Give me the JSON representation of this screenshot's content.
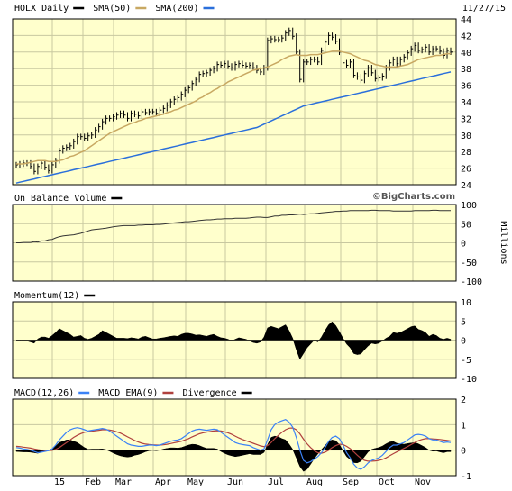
{
  "date_label": "11/27/15",
  "watermark": "©BigCharts.com",
  "colors": {
    "panel_bg": "#ffffcc",
    "grid": "#c8c8a0",
    "price": "#000000",
    "sma50": "#c8a862",
    "sma200": "#2a6fdb",
    "macd": "#3b82f6",
    "ema": "#b0413e",
    "fill": "#000000"
  },
  "x_axis": {
    "labels": [
      "15",
      "Feb",
      "Mar",
      "Apr",
      "May",
      "Jun",
      "Jul",
      "Aug",
      "Sep",
      "Oct",
      "Nov"
    ]
  },
  "chart_data": [
    {
      "type": "line",
      "name": "price",
      "legend": [
        {
          "name": "HOLX Daily",
          "color": "#000000"
        },
        {
          "name": "SMA(50)",
          "color": "#c8a862"
        },
        {
          "name": "SMA(200)",
          "color": "#2a6fdb"
        }
      ],
      "ylim": [
        24,
        44
      ],
      "yticks": [
        24,
        26,
        28,
        30,
        32,
        34,
        36,
        38,
        40,
        42,
        44
      ],
      "x": [
        0,
        4,
        8,
        12,
        16,
        20,
        24,
        28,
        32,
        36,
        40,
        44,
        48,
        52,
        56,
        60,
        64,
        68,
        72,
        76,
        80,
        84,
        88,
        92,
        96,
        100,
        104,
        108,
        112,
        116,
        120,
        124,
        128,
        132,
        136,
        140,
        144,
        148,
        152,
        156,
        160,
        164,
        168,
        172,
        176,
        180,
        184,
        188,
        192,
        196,
        200,
        204,
        208,
        212,
        216,
        220,
        224,
        228,
        232,
        236,
        240,
        244,
        248,
        252,
        256,
        260,
        264,
        268,
        272,
        276,
        280,
        284,
        288,
        292,
        296,
        300,
        304,
        308,
        312,
        316,
        320,
        324,
        328,
        332,
        336,
        340,
        344,
        348,
        352,
        356,
        360,
        364,
        368,
        372,
        376,
        380,
        384,
        388,
        392,
        396,
        400,
        404,
        408,
        412,
        416,
        420,
        424,
        428,
        432,
        436,
        440,
        444,
        448,
        452,
        456,
        460,
        464,
        468,
        472,
        476,
        480,
        484
      ],
      "price": [
        26.4,
        26.5,
        26.6,
        26.6,
        26.2,
        25.6,
        26.2,
        26.6,
        26.1,
        25.7,
        26.4,
        26.9,
        28.1,
        28.4,
        28.5,
        28.7,
        29.2,
        29.8,
        29.8,
        29.6,
        29.9,
        30.0,
        30.6,
        31.0,
        31.6,
        32.0,
        32.0,
        32.2,
        32.4,
        32.6,
        32.4,
        32.0,
        32.6,
        32.5,
        32.3,
        32.8,
        32.7,
        32.8,
        32.8,
        32.6,
        33.0,
        33.2,
        33.6,
        34.0,
        34.3,
        34.5,
        34.9,
        35.4,
        35.7,
        36.2,
        36.7,
        37.3,
        37.4,
        37.5,
        37.8,
        38.0,
        38.5,
        38.4,
        38.6,
        38.3,
        38.1,
        38.5,
        38.6,
        38.4,
        38.3,
        38.4,
        38.1,
        37.8,
        37.6,
        38.1,
        41.4,
        41.6,
        41.5,
        41.5,
        41.7,
        42.3,
        42.6,
        41.9,
        40.0,
        36.7,
        38.8,
        38.8,
        39.1,
        39.1,
        38.8,
        40.2,
        41.2,
        42.0,
        41.8,
        41.3,
        40.0,
        38.7,
        38.4,
        38.8,
        37.2,
        37.0,
        36.6,
        37.4,
        38.1,
        37.5,
        36.8,
        36.9,
        37.1,
        38.1,
        38.7,
        39.1,
        38.6,
        39.1,
        39.4,
        39.9,
        40.4,
        40.8,
        40.2,
        40.3,
        40.6,
        40.0,
        40.4,
        40.4,
        40.1,
        39.6,
        40.2,
        40.0
      ],
      "sma50": [
        26.5,
        26.5,
        26.5,
        26.6,
        26.7,
        26.8,
        26.9,
        26.9,
        26.9,
        26.8,
        26.8,
        26.8,
        26.9,
        27.0,
        27.2,
        27.4,
        27.5,
        27.7,
        27.9,
        28.1,
        28.4,
        28.7,
        29.0,
        29.3,
        29.6,
        29.9,
        30.2,
        30.4,
        30.6,
        30.8,
        31.0,
        31.2,
        31.4,
        31.5,
        31.7,
        31.8,
        32.0,
        32.1,
        32.2,
        32.3,
        32.4,
        32.5,
        32.7,
        32.8,
        33.0,
        33.1,
        33.3,
        33.5,
        33.7,
        33.9,
        34.1,
        34.4,
        34.6,
        34.9,
        35.1,
        35.4,
        35.6,
        35.9,
        36.1,
        36.4,
        36.6,
        36.8,
        37.0,
        37.2,
        37.4,
        37.6,
        37.8,
        37.9,
        38.0,
        38.1,
        38.2,
        38.4,
        38.6,
        38.8,
        39.1,
        39.3,
        39.5,
        39.6,
        39.7,
        39.6,
        39.6,
        39.6,
        39.7,
        39.7,
        39.7,
        39.8,
        39.9,
        40.0,
        40.1,
        40.1,
        40.1,
        40.0,
        39.9,
        39.8,
        39.6,
        39.4,
        39.2,
        39.0,
        38.9,
        38.7,
        38.5,
        38.4,
        38.3,
        38.2,
        38.2,
        38.2,
        38.2,
        38.3,
        38.4,
        38.5,
        38.7,
        38.9,
        39.1,
        39.2,
        39.3,
        39.4,
        39.5,
        39.6,
        39.6,
        39.7,
        39.8,
        39.8
      ],
      "sma200": [
        24.2,
        24.3,
        24.4,
        24.5,
        24.6,
        24.7,
        24.8,
        24.9,
        25.0,
        25.1,
        25.2,
        25.3,
        25.4,
        25.5,
        25.6,
        25.7,
        25.8,
        25.9,
        26.0,
        26.1,
        26.2,
        26.3,
        26.4,
        26.5,
        26.6,
        26.7,
        26.8,
        26.9,
        27.0,
        27.1,
        27.2,
        27.3,
        27.4,
        27.5,
        27.6,
        27.7,
        27.8,
        27.9,
        28.0,
        28.1,
        28.2,
        28.3,
        28.4,
        28.5,
        28.6,
        28.7,
        28.8,
        28.9,
        29.0,
        29.1,
        29.2,
        29.3,
        29.4,
        29.5,
        29.6,
        29.7,
        29.8,
        29.9,
        30.0,
        30.1,
        30.2,
        30.3,
        30.4,
        30.5,
        30.6,
        30.7,
        30.8,
        30.9,
        31.1,
        31.3,
        31.5,
        31.7,
        31.9,
        32.1,
        32.3,
        32.5,
        32.7,
        32.9,
        33.1,
        33.3,
        33.5,
        33.6,
        33.7,
        33.8,
        33.9,
        34.0,
        34.1,
        34.2,
        34.3,
        34.4,
        34.5,
        34.6,
        34.7,
        34.8,
        34.9,
        35.0,
        35.1,
        35.2,
        35.3,
        35.4,
        35.5,
        35.6,
        35.7,
        35.8,
        35.9,
        36.0,
        36.1,
        36.2,
        36.3,
        36.4,
        36.5,
        36.6,
        36.7,
        36.8,
        36.9,
        37.0,
        37.1,
        37.2,
        37.3,
        37.4,
        37.5,
        37.6
      ]
    },
    {
      "type": "line",
      "name": "obv",
      "legend": [
        {
          "name": "On Balance Volume",
          "color": "#000000"
        }
      ],
      "ylabel": "Millions",
      "ylim": [
        -100,
        100
      ],
      "yticks": [
        -100,
        -50,
        0,
        50,
        100
      ],
      "values": [
        0,
        0,
        1,
        1,
        1,
        3,
        2,
        5,
        5,
        8,
        9,
        13,
        16,
        18,
        19,
        20,
        21,
        23,
        25,
        28,
        31,
        34,
        35,
        36,
        37,
        38,
        40,
        42,
        43,
        44,
        45,
        45,
        45,
        45,
        46,
        46,
        47,
        47,
        47,
        48,
        48,
        49,
        50,
        51,
        52,
        53,
        54,
        55,
        55,
        56,
        57,
        58,
        59,
        60,
        60,
        61,
        62,
        62,
        63,
        63,
        63,
        64,
        64,
        64,
        64,
        65,
        66,
        67,
        67,
        66,
        66,
        68,
        70,
        70,
        72,
        72,
        73,
        73,
        74,
        75,
        74,
        75,
        76,
        76,
        77,
        78,
        79,
        80,
        81,
        82,
        82,
        83,
        83,
        84,
        84,
        84,
        84,
        84,
        84,
        85,
        85,
        84,
        84,
        84,
        84,
        83,
        83,
        83,
        83,
        83,
        83,
        84,
        84,
        84,
        84,
        84,
        85,
        85,
        84,
        84,
        84,
        84
      ]
    },
    {
      "type": "area",
      "name": "momentum",
      "legend": [
        {
          "name": "Momentum(12)",
          "color": "#000000"
        }
      ],
      "ylim": [
        -10,
        10
      ],
      "yticks": [
        -10,
        -5,
        0,
        5,
        10
      ],
      "values": [
        0,
        0,
        -0.2,
        -0.2,
        -0.5,
        -0.8,
        0.3,
        0.8,
        0.8,
        0.5,
        1.2,
        2.0,
        3.0,
        2.5,
        2.0,
        1.5,
        0.8,
        1.0,
        1.2,
        0.5,
        0.2,
        0.5,
        1.0,
        1.5,
        2.5,
        2.0,
        1.5,
        1.0,
        0.5,
        0.5,
        0.5,
        0.4,
        0.6,
        0.5,
        0.3,
        0.8,
        1.0,
        0.6,
        0.3,
        0.3,
        0.5,
        0.6,
        0.8,
        1.0,
        1.1,
        1.0,
        1.5,
        1.8,
        1.8,
        1.6,
        1.3,
        1.4,
        1.2,
        1.0,
        1.3,
        1.5,
        1.0,
        0.6,
        0.5,
        0.2,
        -0.2,
        0.2,
        0.6,
        0.4,
        0.2,
        -0.2,
        -0.6,
        -0.8,
        -0.5,
        0.8,
        3.2,
        3.6,
        3.3,
        3.0,
        3.5,
        4.0,
        2.5,
        0.5,
        -2.5,
        -5.0,
        -3.5,
        -2.0,
        -1.0,
        0,
        -0.5,
        0.8,
        2.5,
        4.0,
        4.8,
        3.8,
        2.2,
        0.5,
        -1.0,
        -2.0,
        -3.5,
        -3.8,
        -3.6,
        -2.5,
        -1.5,
        -0.8,
        -1.0,
        -0.8,
        -0.2,
        0.5,
        1.0,
        2.0,
        1.8,
        2.0,
        2.5,
        3.0,
        3.5,
        3.7,
        2.8,
        2.5,
        2.0,
        1.0,
        1.5,
        1.2,
        0.5,
        0.2,
        0.5,
        0.2
      ]
    },
    {
      "type": "line",
      "name": "macd",
      "legend": [
        {
          "name": "MACD(12,26)",
          "color": "#3b82f6"
        },
        {
          "name": "MACD EMA(9)",
          "color": "#b0413e"
        },
        {
          "name": "Divergence",
          "color": "#000000"
        }
      ],
      "ylim": [
        -1,
        2
      ],
      "yticks": [
        -1,
        0,
        1,
        2
      ],
      "macd": [
        0.1,
        0.08,
        0.05,
        0.03,
        0.0,
        -0.05,
        -0.1,
        -0.08,
        -0.05,
        -0.02,
        0.05,
        0.2,
        0.4,
        0.55,
        0.7,
        0.8,
        0.85,
        0.88,
        0.85,
        0.8,
        0.75,
        0.78,
        0.8,
        0.82,
        0.85,
        0.82,
        0.75,
        0.65,
        0.55,
        0.45,
        0.35,
        0.25,
        0.2,
        0.18,
        0.15,
        0.15,
        0.18,
        0.2,
        0.2,
        0.18,
        0.2,
        0.25,
        0.3,
        0.35,
        0.38,
        0.4,
        0.45,
        0.55,
        0.65,
        0.75,
        0.8,
        0.82,
        0.8,
        0.78,
        0.8,
        0.82,
        0.8,
        0.7,
        0.6,
        0.5,
        0.4,
        0.3,
        0.25,
        0.22,
        0.2,
        0.18,
        0.1,
        0.05,
        0.0,
        0.05,
        0.4,
        0.8,
        1.0,
        1.1,
        1.15,
        1.2,
        1.1,
        0.9,
        0.5,
        0.0,
        -0.4,
        -0.5,
        -0.45,
        -0.35,
        -0.25,
        -0.1,
        0.1,
        0.35,
        0.5,
        0.55,
        0.45,
        0.2,
        -0.1,
        -0.3,
        -0.55,
        -0.7,
        -0.75,
        -0.65,
        -0.5,
        -0.4,
        -0.35,
        -0.3,
        -0.2,
        -0.05,
        0.1,
        0.2,
        0.2,
        0.25,
        0.3,
        0.4,
        0.5,
        0.6,
        0.62,
        0.6,
        0.55,
        0.45,
        0.4,
        0.4,
        0.35,
        0.3,
        0.32,
        0.3
      ],
      "signal": [
        0.15,
        0.14,
        0.12,
        0.1,
        0.08,
        0.05,
        0.02,
        0.0,
        -0.01,
        -0.02,
        -0.01,
        0.03,
        0.1,
        0.2,
        0.3,
        0.4,
        0.5,
        0.58,
        0.65,
        0.7,
        0.72,
        0.74,
        0.76,
        0.78,
        0.8,
        0.8,
        0.79,
        0.76,
        0.72,
        0.67,
        0.6,
        0.52,
        0.45,
        0.38,
        0.32,
        0.27,
        0.24,
        0.22,
        0.21,
        0.2,
        0.2,
        0.21,
        0.23,
        0.26,
        0.29,
        0.32,
        0.35,
        0.4,
        0.45,
        0.52,
        0.58,
        0.64,
        0.68,
        0.71,
        0.73,
        0.75,
        0.76,
        0.75,
        0.72,
        0.68,
        0.62,
        0.55,
        0.48,
        0.42,
        0.37,
        0.32,
        0.27,
        0.22,
        0.17,
        0.14,
        0.18,
        0.3,
        0.45,
        0.58,
        0.7,
        0.8,
        0.86,
        0.87,
        0.8,
        0.64,
        0.43,
        0.25,
        0.1,
        -0.02,
        -0.1,
        -0.12,
        -0.08,
        0.0,
        0.1,
        0.18,
        0.23,
        0.22,
        0.15,
        0.06,
        -0.06,
        -0.2,
        -0.32,
        -0.4,
        -0.43,
        -0.43,
        -0.42,
        -0.4,
        -0.36,
        -0.3,
        -0.22,
        -0.14,
        -0.07,
        0.0,
        0.07,
        0.14,
        0.22,
        0.3,
        0.37,
        0.42,
        0.45,
        0.45,
        0.44,
        0.43,
        0.42,
        0.4,
        0.38,
        0.36
      ],
      "divergence": [
        -0.05,
        -0.06,
        -0.07,
        -0.07,
        -0.08,
        -0.1,
        -0.12,
        -0.08,
        -0.04,
        0.0,
        0.06,
        0.17,
        0.3,
        0.35,
        0.4,
        0.4,
        0.35,
        0.3,
        0.2,
        0.1,
        0.03,
        0.04,
        0.04,
        0.04,
        0.05,
        0.02,
        -0.04,
        -0.11,
        -0.17,
        -0.22,
        -0.25,
        -0.27,
        -0.25,
        -0.2,
        -0.17,
        -0.12,
        -0.06,
        -0.02,
        -0.01,
        -0.02,
        0.0,
        0.04,
        0.07,
        0.09,
        0.09,
        0.08,
        0.1,
        0.15,
        0.2,
        0.23,
        0.22,
        0.18,
        0.12,
        0.07,
        0.07,
        0.07,
        0.04,
        -0.05,
        -0.12,
        -0.18,
        -0.22,
        -0.25,
        -0.23,
        -0.2,
        -0.17,
        -0.14,
        -0.17,
        -0.17,
        -0.17,
        -0.09,
        0.22,
        0.5,
        0.55,
        0.52,
        0.45,
        0.4,
        0.24,
        0.03,
        -0.3,
        -0.64,
        -0.83,
        -0.75,
        -0.55,
        -0.33,
        -0.15,
        0.02,
        0.18,
        0.35,
        0.4,
        0.37,
        0.22,
        -0.02,
        -0.25,
        -0.36,
        -0.49,
        -0.5,
        -0.43,
        -0.25,
        -0.07,
        0.03,
        0.07,
        0.1,
        0.16,
        0.25,
        0.32,
        0.34,
        0.27,
        0.25,
        0.23,
        0.26,
        0.28,
        0.3,
        0.25,
        0.18,
        0.1,
        0.0,
        -0.04,
        -0.03,
        -0.07,
        -0.1,
        -0.06,
        -0.06
      ]
    }
  ]
}
